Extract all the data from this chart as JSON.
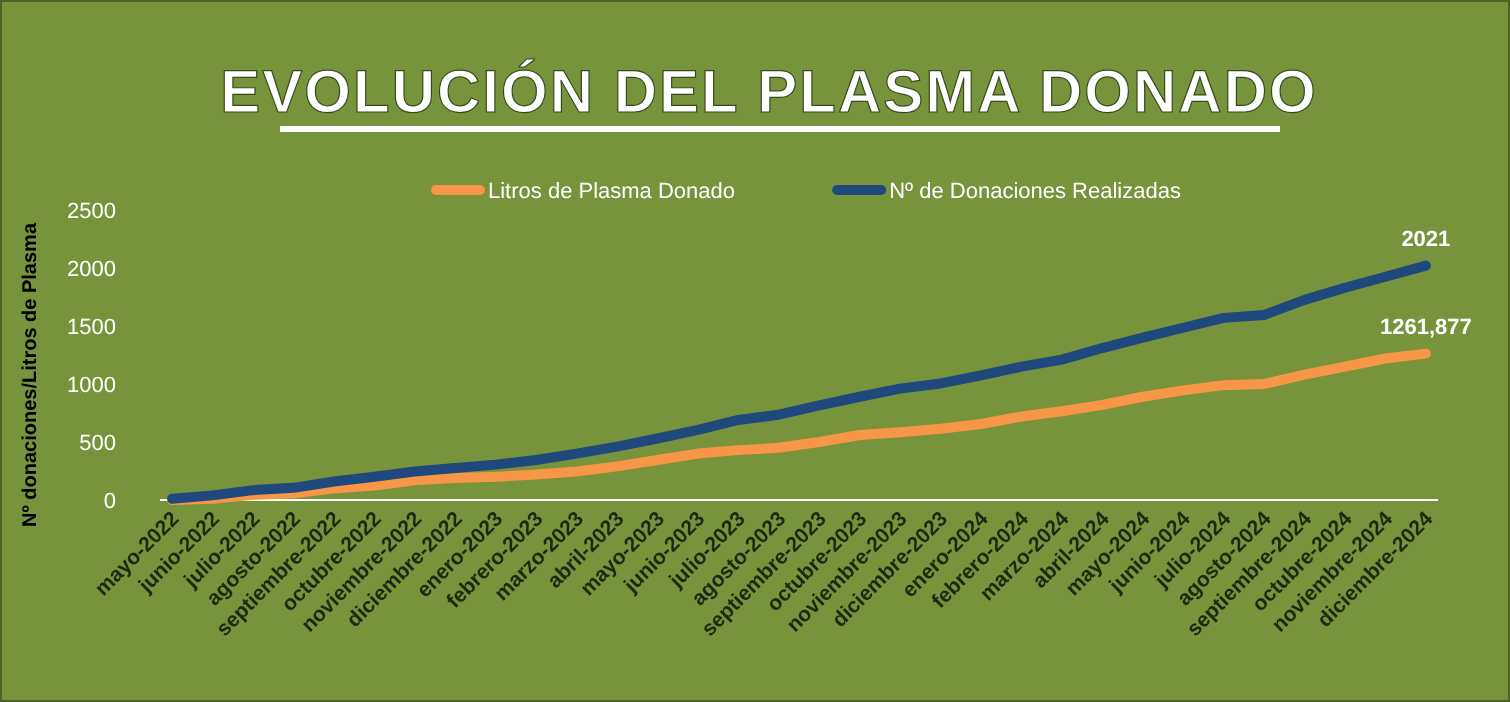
{
  "chart_data": {
    "type": "line",
    "title": "EVOLUCIÓN DEL PLASMA DONADO",
    "ylabel": "Nº donaciones/Litros de  Plasma",
    "categories": [
      "mayo-2022",
      "junio-2022",
      "julio-2022",
      "agosto-2022",
      "septiembre-2022",
      "octubre-2022",
      "noviembre-2022",
      "diciembre-2022",
      "enero-2023",
      "febrero-2023",
      "marzo-2023",
      "abril-2023",
      "mayo-2023",
      "junio-2023",
      "julio-2023",
      "agosto-2023",
      "septiembre-2023",
      "octubre-2023",
      "noviembre-2023",
      "diciembre-2023",
      "enero-2024",
      "febrero-2024",
      "marzo-2024",
      "abril-2024",
      "mayo-2024",
      "junio-2024",
      "julio-2024",
      "agosto-2024",
      "septiembre-2024",
      "octubre-2024",
      "noviembre-2024",
      "diciembre-2024"
    ],
    "series": [
      {
        "name": "Litros de Plasma Donado",
        "color": "#f79646",
        "values": [
          0,
          10,
          45,
          55,
          100,
          125,
          170,
          190,
          200,
          220,
          245,
          290,
          345,
          400,
          430,
          450,
          500,
          560,
          585,
          615,
          655,
          720,
          765,
          820,
          890,
          945,
          990,
          1000,
          1080,
          1150,
          1220,
          1261.877
        ],
        "value_labels": [
          null,
          null,
          null,
          null,
          null,
          null,
          null,
          null,
          null,
          null,
          null,
          null,
          null,
          null,
          null,
          null,
          null,
          null,
          null,
          null,
          null,
          null,
          null,
          null,
          null,
          null,
          null,
          null,
          null,
          null,
          null,
          "1261,877"
        ]
      },
      {
        "name": "Nº de Donaciones Realizadas",
        "color": "#1f497d",
        "values": [
          10,
          40,
          85,
          105,
          160,
          200,
          245,
          275,
          305,
          345,
          400,
          460,
          530,
          605,
          690,
          735,
          815,
          890,
          960,
          1005,
          1075,
          1150,
          1210,
          1310,
          1400,
          1485,
          1570,
          1595,
          1725,
          1830,
          1925,
          2021
        ],
        "value_labels": [
          null,
          null,
          null,
          null,
          null,
          null,
          null,
          null,
          null,
          null,
          null,
          null,
          null,
          null,
          null,
          null,
          null,
          null,
          null,
          null,
          null,
          null,
          null,
          null,
          null,
          null,
          null,
          null,
          null,
          null,
          null,
          "2021"
        ]
      }
    ],
    "ylim": [
      0,
      2500
    ],
    "yticks": [
      0,
      500,
      1000,
      1500,
      2000,
      2500
    ],
    "grid": false,
    "legend": "top",
    "marker": "none",
    "line_style": "solid"
  }
}
